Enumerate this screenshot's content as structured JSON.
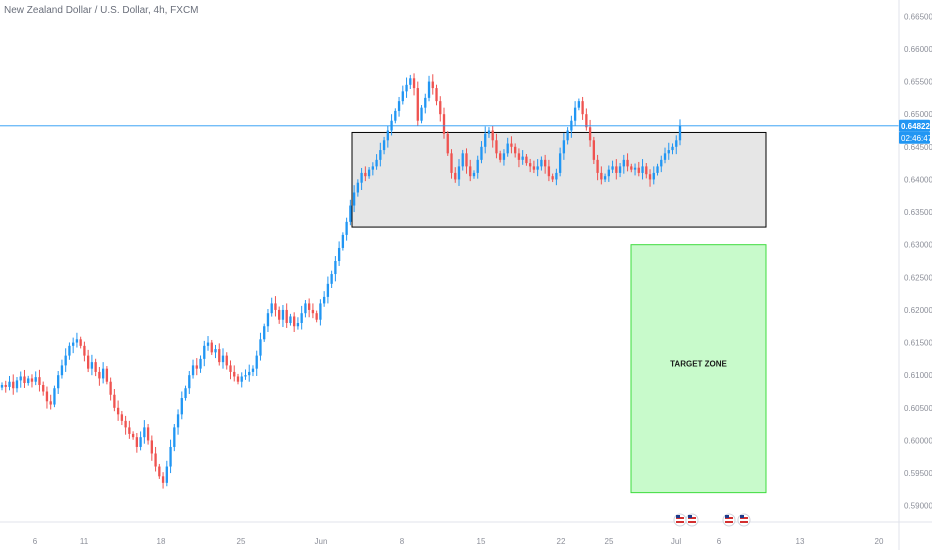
{
  "chart_data": {
    "type": "candlestick",
    "title": "New Zealand Dollar / U.S. Dollar, 4h, FXCM",
    "x_ticks": [
      "6",
      "11",
      "18",
      "25",
      "Jun",
      "8",
      "15",
      "22",
      "25",
      "Jul",
      "6",
      "13",
      "20"
    ],
    "y_ticks": [
      "0.66500",
      "0.66000",
      "0.65500",
      "0.65000",
      "0.64500",
      "0.64000",
      "0.63500",
      "0.63000",
      "0.62500",
      "0.62000",
      "0.61500",
      "0.61000",
      "0.60500",
      "0.60000",
      "0.59500",
      "0.59000"
    ],
    "ylim": [
      0.5875,
      0.6675
    ],
    "last_price": "0.64822",
    "countdown": "02:46:47",
    "last_price_value": 0.64822,
    "colors": {
      "up": "#2196f3",
      "down": "#ef5350",
      "price_line": "#2196f3",
      "consolidation_fill": "#e6e6e6",
      "consolidation_border": "#000000",
      "target_fill": "#c8facb",
      "target_border": "#3ddc3d",
      "axis_text": "#8c8f99"
    },
    "consolidation_zone": {
      "top": 0.6472,
      "bottom": 0.6327
    },
    "target_zone": {
      "label": "TARGET ZONE",
      "top": 0.63,
      "bottom": 0.592
    },
    "event_markers": [
      {
        "date": "Jul 1",
        "icons": [
          "flag-icon",
          "flag-icon"
        ]
      },
      {
        "date": "Jul 9",
        "icons": [
          "flag-icon",
          "flag-icon"
        ]
      }
    ],
    "candles_series": [
      0.6085,
      0.6082,
      0.609,
      0.608,
      0.6092,
      0.6098,
      0.6088,
      0.6095,
      0.609,
      0.6097,
      0.6085,
      0.6075,
      0.606,
      0.6055,
      0.608,
      0.61,
      0.6115,
      0.613,
      0.6145,
      0.615,
      0.6155,
      0.6145,
      0.613,
      0.611,
      0.612,
      0.6105,
      0.6095,
      0.611,
      0.609,
      0.607,
      0.605,
      0.604,
      0.603,
      0.602,
      0.601,
      0.6005,
      0.599,
      0.6005,
      0.602,
      0.6,
      0.598,
      0.596,
      0.5945,
      0.5935,
      0.596,
      0.599,
      0.602,
      0.604,
      0.6065,
      0.608,
      0.61,
      0.6115,
      0.611,
      0.6125,
      0.6145,
      0.615,
      0.6135,
      0.614,
      0.612,
      0.613,
      0.6115,
      0.6105,
      0.6098,
      0.609,
      0.6098,
      0.61,
      0.6105,
      0.611,
      0.613,
      0.6155,
      0.6175,
      0.6195,
      0.621,
      0.62,
      0.6185,
      0.62,
      0.618,
      0.619,
      0.6175,
      0.618,
      0.6195,
      0.621,
      0.62,
      0.6195,
      0.6185,
      0.621,
      0.622,
      0.624,
      0.6255,
      0.6275,
      0.6295,
      0.6315,
      0.6335,
      0.636,
      0.638,
      0.6395,
      0.641,
      0.6405,
      0.6415,
      0.642,
      0.643,
      0.6445,
      0.646,
      0.6475,
      0.649,
      0.6505,
      0.652,
      0.6535,
      0.6545,
      0.6555,
      0.654,
      0.649,
      0.651,
      0.6525,
      0.655,
      0.654,
      0.652,
      0.65,
      0.647,
      0.644,
      0.641,
      0.64,
      0.642,
      0.644,
      0.642,
      0.6405,
      0.641,
      0.643,
      0.645,
      0.647,
      0.6475,
      0.646,
      0.644,
      0.643,
      0.644,
      0.6455,
      0.645,
      0.644,
      0.643,
      0.6435,
      0.6425,
      0.642,
      0.6415,
      0.642,
      0.643,
      0.642,
      0.6405,
      0.64,
      0.641,
      0.644,
      0.646,
      0.6475,
      0.649,
      0.651,
      0.652,
      0.65,
      0.648,
      0.646,
      0.643,
      0.641,
      0.64,
      0.6405,
      0.6415,
      0.642,
      0.641,
      0.642,
      0.643,
      0.642,
      0.6415,
      0.6418,
      0.641,
      0.642,
      0.6408,
      0.64,
      0.641,
      0.642,
      0.643,
      0.644,
      0.6445,
      0.645,
      0.646,
      0.6482
    ]
  }
}
